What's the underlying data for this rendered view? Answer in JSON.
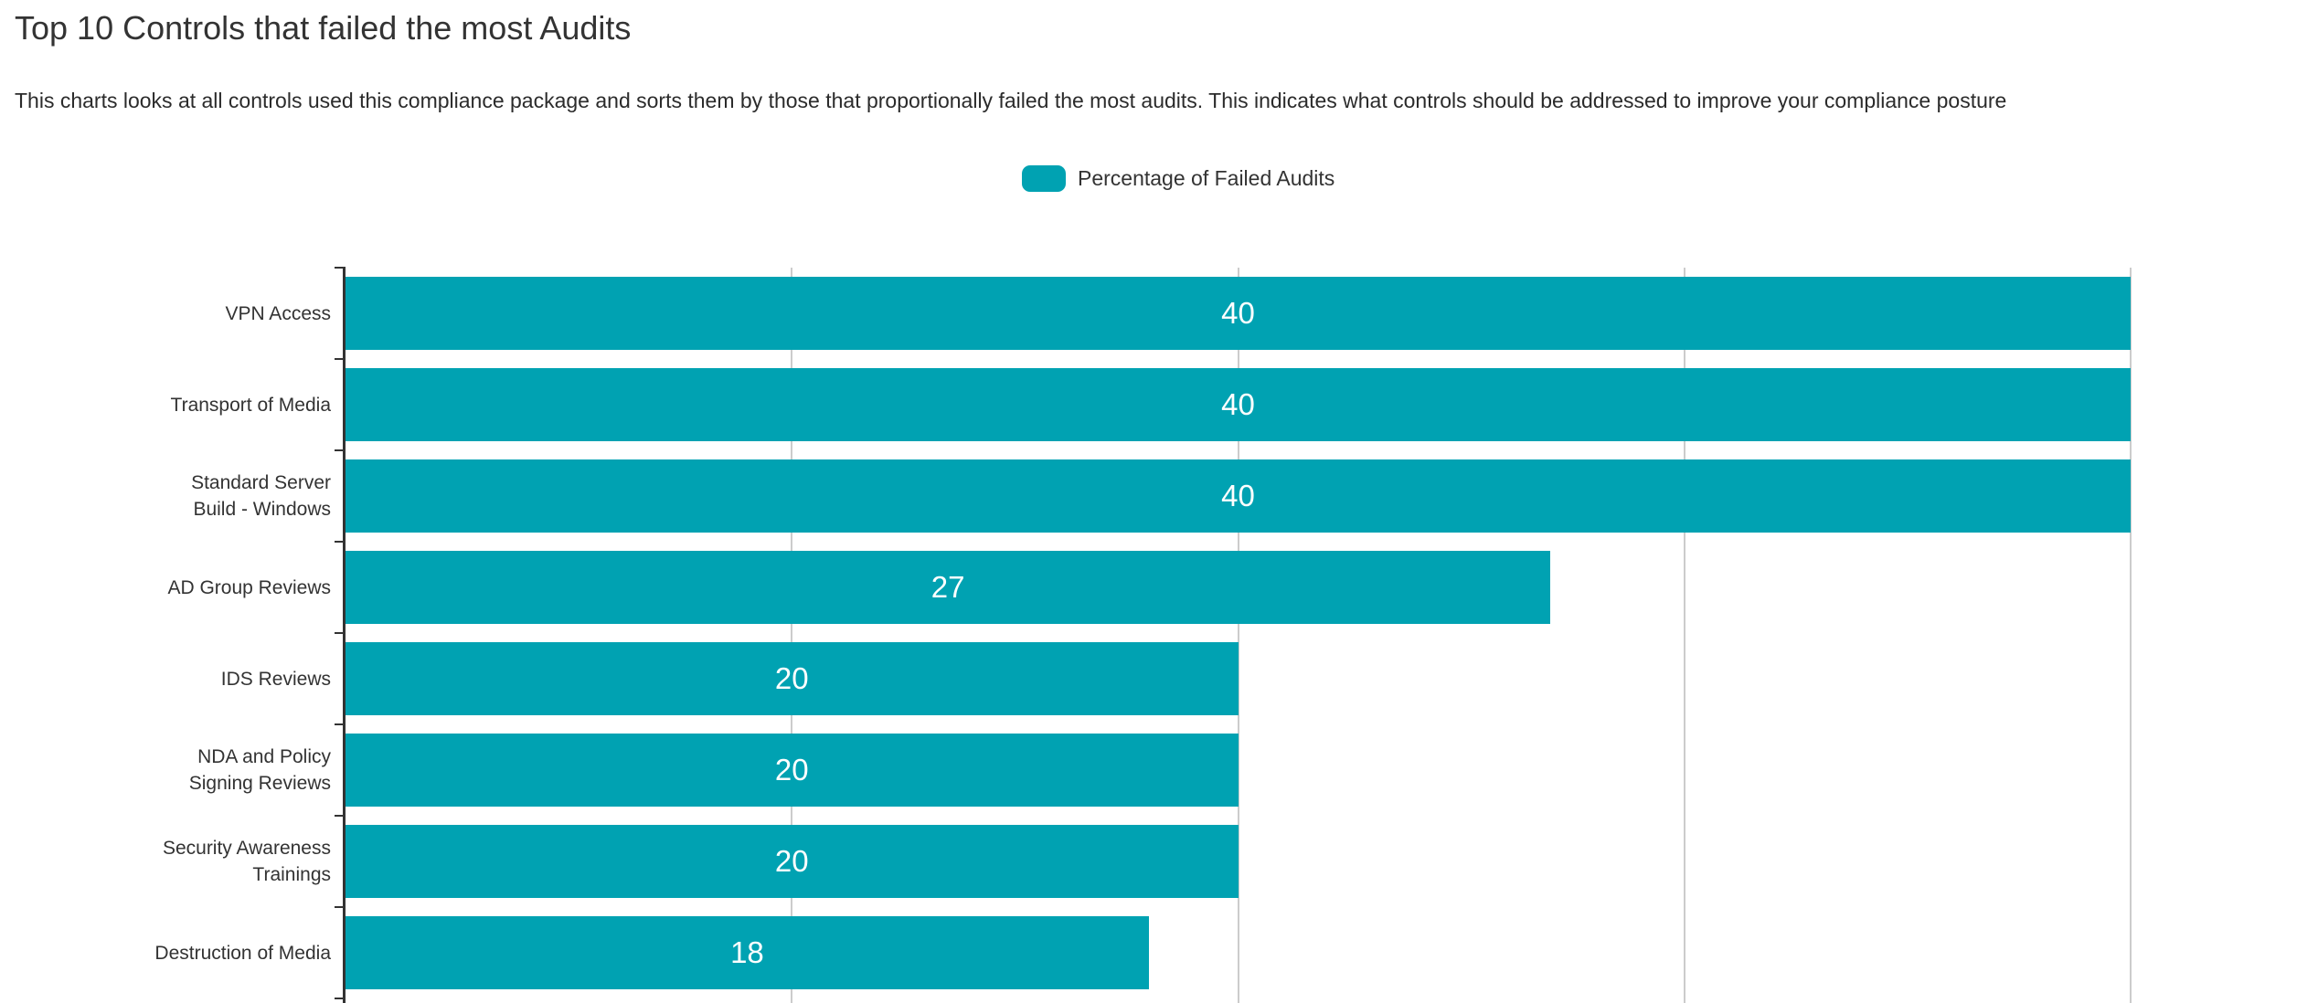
{
  "header": {
    "title": "Top 10 Controls that failed the most Audits",
    "subtitle": "This charts looks at all controls used this compliance package and sorts them by those that proportionally failed the most audits. This indicates what controls should be addressed to improve your compliance posture"
  },
  "legend": {
    "label": "Percentage of Failed Audits",
    "swatch_color": "#00a2b2"
  },
  "chart_data": {
    "type": "bar",
    "orientation": "horizontal",
    "title": "Top 10 Controls that failed the most Audits",
    "series_name": "Percentage of Failed Audits",
    "categories": [
      "VPN Access",
      "Transport of Media",
      "Standard Server Build - Windows",
      "AD Group Reviews",
      "IDS Reviews",
      "NDA and Policy Signing Reviews",
      "Security Awareness Trainings",
      "Destruction of Media"
    ],
    "category_display_lines": [
      [
        "VPN Access"
      ],
      [
        "Transport of Media"
      ],
      [
        "Standard Server",
        "Build - Windows"
      ],
      [
        "AD Group Reviews"
      ],
      [
        "IDS Reviews"
      ],
      [
        "NDA and Policy",
        "Signing Reviews"
      ],
      [
        "Security Awareness",
        "Trainings"
      ],
      [
        "Destruction of Media"
      ]
    ],
    "values": [
      40,
      40,
      40,
      27,
      20,
      20,
      20,
      18
    ],
    "xlim": [
      0,
      40
    ],
    "x_gridlines": [
      10,
      20,
      30,
      40
    ],
    "bar_color": "#00a2b2",
    "grid_color": "#cccccc",
    "axis_color": "#333333",
    "value_label_color": "#ffffff",
    "legend_position": "top-center",
    "grid": "vertical-on",
    "chart_truncated_at_bottom": true
  }
}
